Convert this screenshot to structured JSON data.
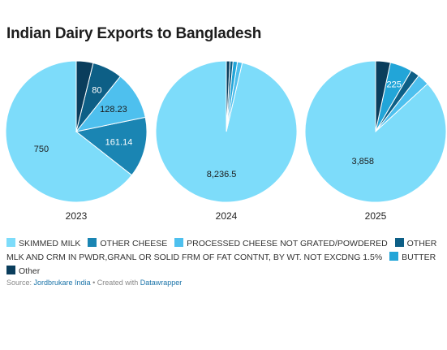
{
  "title": "Indian Dairy Exports to Bangladesh",
  "chart_data": [
    {
      "type": "pie",
      "year_label": "2023",
      "slices": [
        {
          "category": "SKIMMED MILK",
          "value": 750,
          "label": "750"
        },
        {
          "category": "OTHER CHEESE",
          "value": 161.14,
          "label": "161.14"
        },
        {
          "category": "PROCESSED CHEESE NOT GRATED/POWDERED",
          "value": 128.23,
          "label": "128.23"
        },
        {
          "category": "OTHER MLK AND CRM IN PWDR,GRANL OR SOLID FRM OF FAT CONTNT, BY WT. NOT EXCDNG 1.5%",
          "value": 80,
          "label": "80"
        },
        {
          "category": "Other",
          "value": 45,
          "label": ""
        }
      ]
    },
    {
      "type": "pie",
      "year_label": "2024",
      "slices": [
        {
          "category": "SKIMMED MILK",
          "value": 8236.5,
          "label": "8,236.5"
        },
        {
          "category": "PROCESSED CHEESE NOT GRATED/POWDERED",
          "value": 95,
          "label": ""
        },
        {
          "category": "BUTTER",
          "value": 85,
          "label": ""
        },
        {
          "category": "OTHER MLK AND CRM IN PWDR,GRANL OR SOLID FRM OF FAT CONTNT, BY WT. NOT EXCDNG 1.5%",
          "value": 60,
          "label": ""
        },
        {
          "category": "Other",
          "value": 70,
          "label": ""
        }
      ]
    },
    {
      "type": "pie",
      "year_label": "2025",
      "slices": [
        {
          "category": "SKIMMED MILK",
          "value": 3858,
          "label": "3,858"
        },
        {
          "category": "PROCESSED CHEESE NOT GRATED/POWDERED",
          "value": 120,
          "label": ""
        },
        {
          "category": "OTHER MLK AND CRM IN PWDR,GRANL OR SOLID FRM OF FAT CONTNT, BY WT. NOT EXCDNG 1.5%",
          "value": 90,
          "label": ""
        },
        {
          "category": "BUTTER",
          "value": 225,
          "label": "225"
        },
        {
          "category": "Other",
          "value": 150,
          "label": ""
        }
      ]
    }
  ],
  "legend": [
    {
      "label": "SKIMMED MILK",
      "color": "#7ddcfa"
    },
    {
      "label": "OTHER CHEESE",
      "color": "#1a85b3"
    },
    {
      "label": "PROCESSED CHEESE NOT GRATED/POWDERED",
      "color": "#4ec0ee"
    },
    {
      "label": "OTHER MLK AND CRM IN PWDR,GRANL OR SOLID FRM OF FAT CONTNT, BY WT. NOT EXCDNG 1.5%",
      "color": "#0d5f86"
    },
    {
      "label": "BUTTER",
      "color": "#22a5d8"
    },
    {
      "label": "Other",
      "color": "#0a3d5c"
    }
  ],
  "source": {
    "prefix": "Source: ",
    "link": "Jordbrukare India",
    "separator": " • Created with ",
    "tool": "Datawrapper"
  }
}
